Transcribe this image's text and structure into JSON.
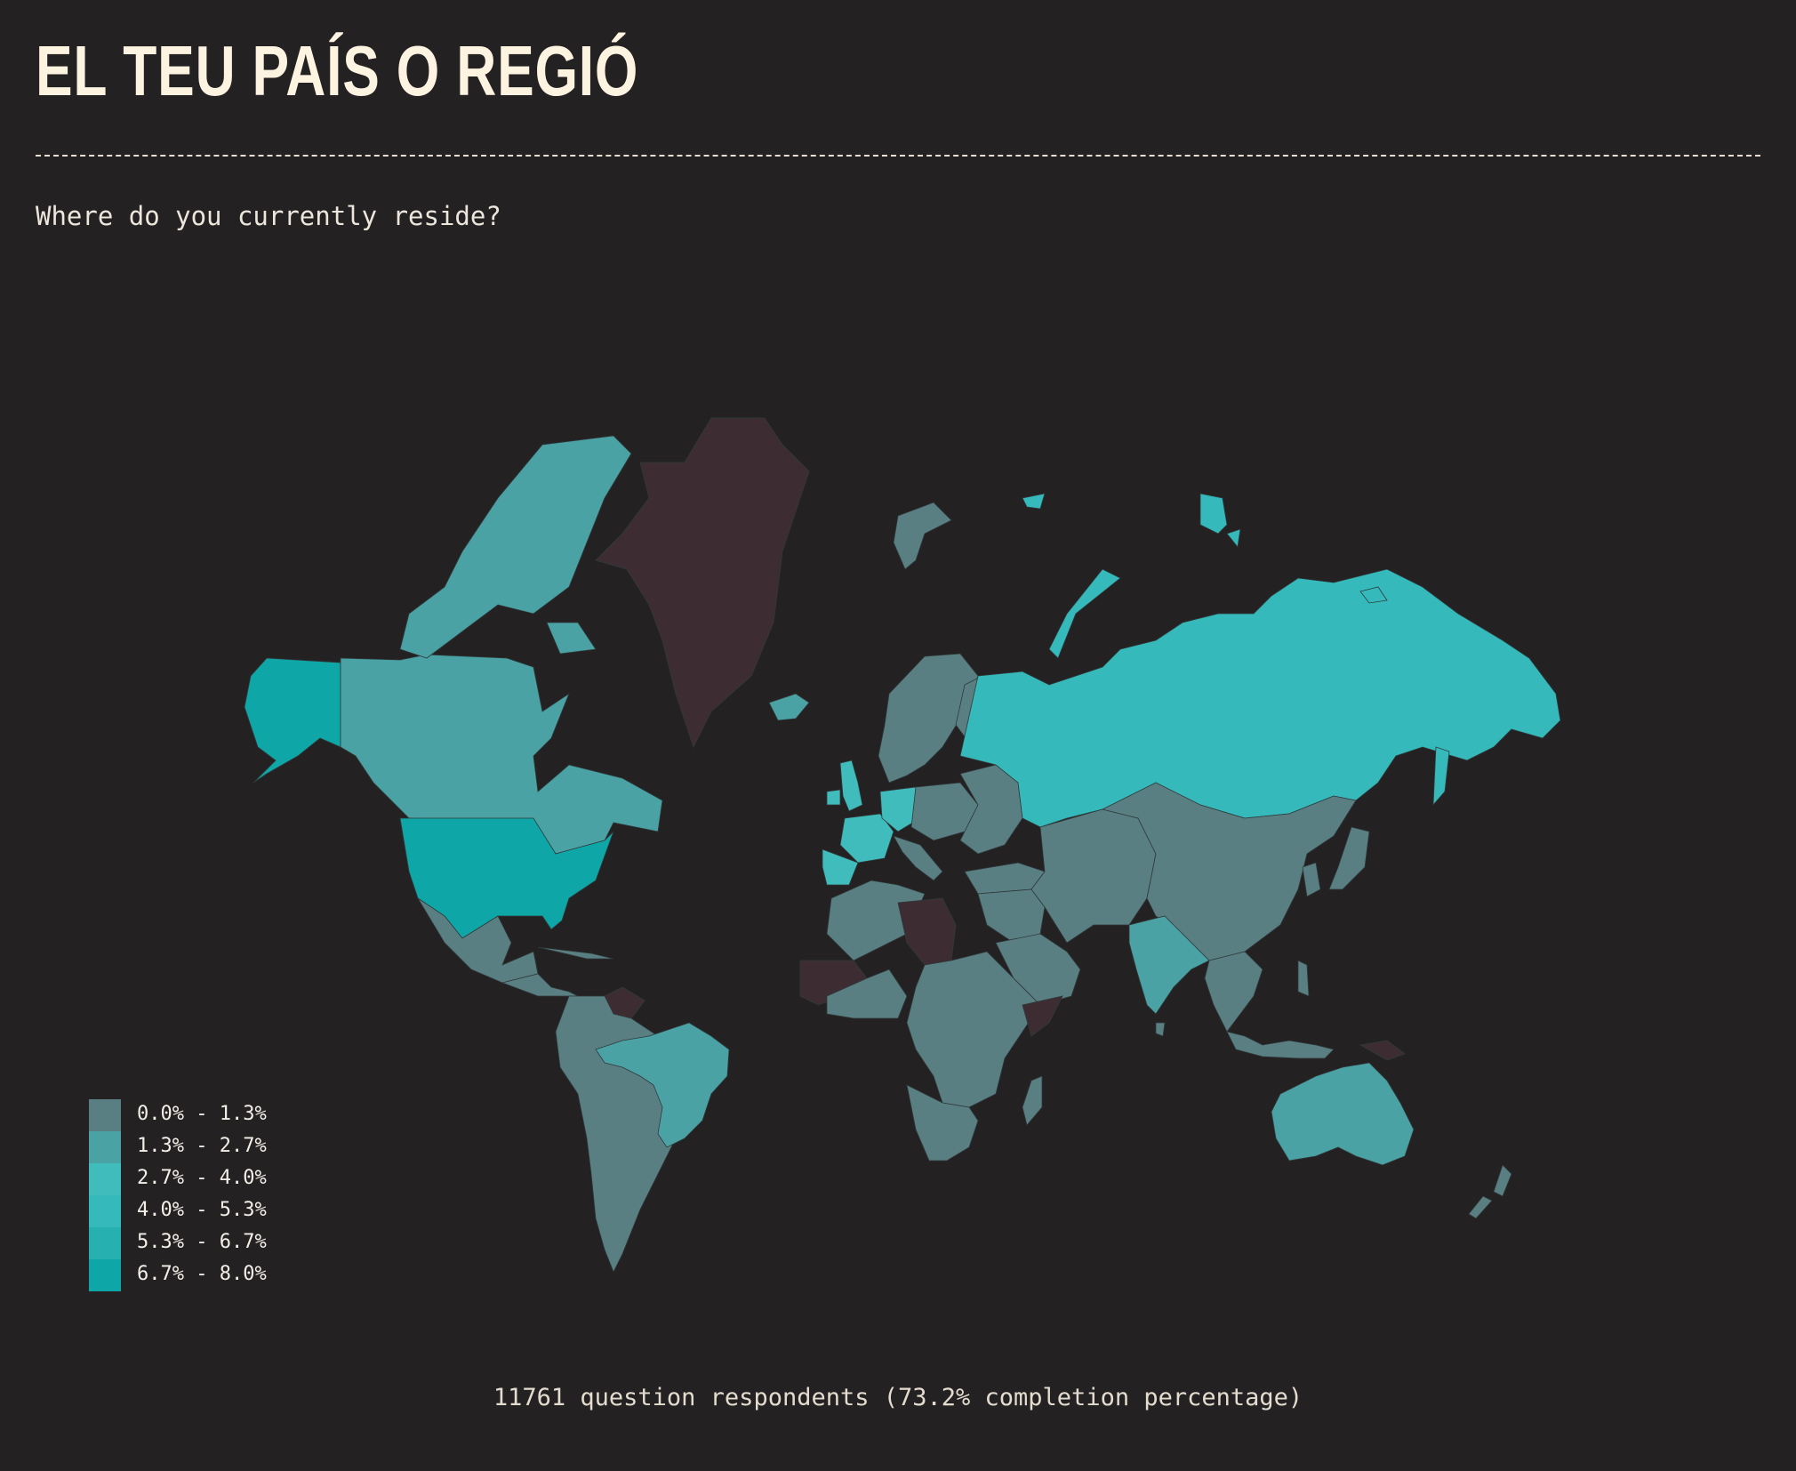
{
  "header": {
    "title": "EL TEU PAÍS O REGIÓ",
    "question": "Where do you currently reside?"
  },
  "legend": {
    "items": [
      {
        "label": "0.0% - 1.3%",
        "color": "#5a7f82"
      },
      {
        "label": "1.3% - 2.7%",
        "color": "#4aa2a4"
      },
      {
        "label": "2.7% - 4.0%",
        "color": "#40bcbd"
      },
      {
        "label": "4.0% - 5.3%",
        "color": "#35b9bb"
      },
      {
        "label": "5.3% - 6.7%",
        "color": "#27b0b0"
      },
      {
        "label": "6.7% - 8.0%",
        "color": "#0ea6a6"
      }
    ],
    "no_data_color": "#3d2d33"
  },
  "footer": {
    "text": "11761 question respondents (73.2% completion percentage)"
  },
  "map": {
    "background": "#242123",
    "regions": [
      {
        "name": "Alaska",
        "bin": 5
      },
      {
        "name": "United States",
        "bin": 5
      },
      {
        "name": "Canada",
        "bin": 1
      },
      {
        "name": "Canadian Arctic Islands",
        "bin": 1
      },
      {
        "name": "Greenland",
        "bin": null
      },
      {
        "name": "Iceland",
        "bin": 1
      },
      {
        "name": "Svalbard",
        "bin": 0
      },
      {
        "name": "Franz Josef Land",
        "bin": 3
      },
      {
        "name": "Novaya Zemlya",
        "bin": 3
      },
      {
        "name": "Severnaya Zemlya",
        "bin": 3
      },
      {
        "name": "New Siberian Islands",
        "bin": 3
      },
      {
        "name": "Mexico",
        "bin": 0
      },
      {
        "name": "Central America",
        "bin": 0
      },
      {
        "name": "Cuba",
        "bin": 0
      },
      {
        "name": "South America",
        "bin": 0
      },
      {
        "name": "Brazil",
        "bin": 1
      },
      {
        "name": "Venezuela",
        "bin": null
      },
      {
        "name": "Scandinavia",
        "bin": 0
      },
      {
        "name": "Finland",
        "bin": 0
      },
      {
        "name": "Ireland",
        "bin": 2
      },
      {
        "name": "United Kingdom",
        "bin": 2
      },
      {
        "name": "France",
        "bin": 2
      },
      {
        "name": "Iberia",
        "bin": 2
      },
      {
        "name": "Germany",
        "bin": 2
      },
      {
        "name": "Central Europe",
        "bin": 0
      },
      {
        "name": "Eastern Europe",
        "bin": 0
      },
      {
        "name": "Italy",
        "bin": 0
      },
      {
        "name": "Russia",
        "bin": 3
      },
      {
        "name": "Sakhalin",
        "bin": 3
      },
      {
        "name": "Turkey",
        "bin": 0
      },
      {
        "name": "Middle East",
        "bin": 0
      },
      {
        "name": "Arabia",
        "bin": 0
      },
      {
        "name": "Central Asia",
        "bin": 0
      },
      {
        "name": "China and Mongolia",
        "bin": 0
      },
      {
        "name": "India",
        "bin": 1
      },
      {
        "name": "Southeast Asia",
        "bin": 0
      },
      {
        "name": "Japan",
        "bin": 0
      },
      {
        "name": "Korea",
        "bin": 0
      },
      {
        "name": "Sri Lanka",
        "bin": 0
      },
      {
        "name": "Indonesia",
        "bin": 0
      },
      {
        "name": "Philippines",
        "bin": 0
      },
      {
        "name": "North Africa",
        "bin": 0
      },
      {
        "name": "Libya",
        "bin": null
      },
      {
        "name": "Mali",
        "bin": null
      },
      {
        "name": "West Africa",
        "bin": 0
      },
      {
        "name": "Central and East Africa",
        "bin": 0
      },
      {
        "name": "Somalia",
        "bin": null
      },
      {
        "name": "Southern Africa",
        "bin": 0
      },
      {
        "name": "Madagascar",
        "bin": 0
      },
      {
        "name": "Australia",
        "bin": 1
      },
      {
        "name": "New Zealand",
        "bin": 0
      },
      {
        "name": "Papua New Guinea",
        "bin": null
      }
    ]
  }
}
